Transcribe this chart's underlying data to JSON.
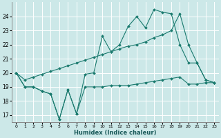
{
  "xlabel": "Humidex (Indice chaleur)",
  "bg_color": "#cce8e8",
  "grid_color": "#ffffff",
  "line_color": "#1a7a6e",
  "xlim": [
    -0.5,
    23.5
  ],
  "ylim": [
    16.5,
    25.0
  ],
  "yticks": [
    17,
    18,
    19,
    20,
    21,
    22,
    23,
    24
  ],
  "xticks": [
    0,
    1,
    2,
    3,
    4,
    5,
    6,
    7,
    8,
    9,
    10,
    11,
    12,
    13,
    14,
    15,
    16,
    17,
    18,
    19,
    20,
    21,
    22,
    23
  ],
  "series1_x": [
    0,
    1,
    2,
    3,
    4,
    5,
    6,
    7,
    8,
    9,
    10,
    11,
    12,
    13,
    14,
    15,
    16,
    17,
    18,
    19,
    20,
    21,
    22,
    23
  ],
  "series1_y": [
    20.0,
    19.0,
    19.0,
    18.7,
    18.5,
    16.7,
    18.8,
    17.1,
    19.0,
    19.0,
    19.0,
    19.1,
    19.1,
    19.1,
    19.2,
    19.3,
    19.4,
    19.5,
    19.6,
    19.7,
    19.2,
    19.2,
    19.3,
    19.3
  ],
  "series2_x": [
    0,
    1,
    2,
    3,
    4,
    5,
    6,
    7,
    8,
    9,
    10,
    11,
    12,
    13,
    14,
    15,
    16,
    17,
    18,
    19,
    20,
    21,
    22,
    23
  ],
  "series2_y": [
    20.0,
    19.0,
    19.0,
    18.7,
    18.5,
    16.7,
    18.8,
    17.1,
    19.9,
    20.0,
    22.6,
    21.5,
    22.0,
    23.3,
    24.0,
    23.2,
    24.5,
    24.3,
    24.2,
    22.0,
    20.7,
    20.7,
    19.5,
    19.3
  ],
  "series3_x": [
    0,
    1,
    2,
    3,
    4,
    5,
    6,
    7,
    8,
    9,
    10,
    11,
    12,
    13,
    14,
    15,
    16,
    17,
    18,
    19,
    20,
    21,
    22,
    23
  ],
  "series3_y": [
    20.0,
    19.5,
    19.7,
    19.9,
    20.1,
    20.3,
    20.5,
    20.7,
    20.9,
    21.1,
    21.3,
    21.5,
    21.7,
    21.9,
    22.0,
    22.2,
    22.5,
    22.7,
    23.0,
    24.2,
    22.0,
    20.7,
    19.5,
    19.3
  ]
}
